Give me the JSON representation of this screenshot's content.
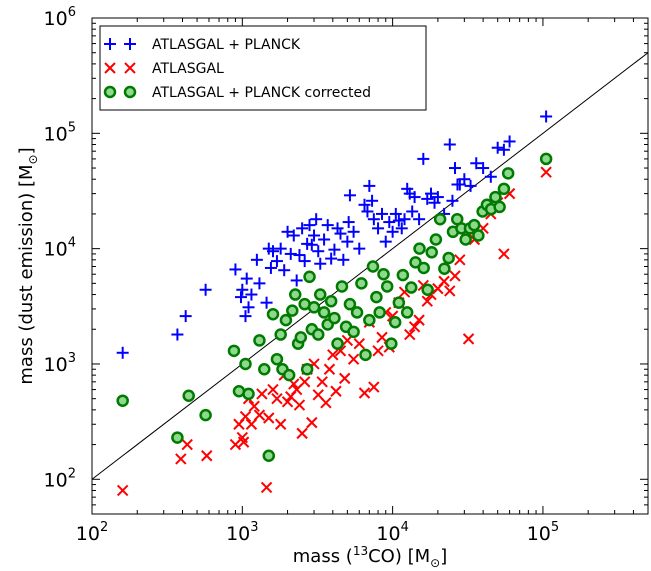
{
  "chart_data": {
    "type": "scatter",
    "title": "",
    "xlabel_parts": {
      "pre": "mass (",
      "sup": "13",
      "mid": "CO) [M",
      "sub": "⊙",
      "post": "]"
    },
    "ylabel_parts": {
      "pre": "mass (dust emission) [M",
      "sub": "⊙",
      "post": "]"
    },
    "x_scale": "log",
    "y_scale": "log",
    "xlim": [
      100,
      500000
    ],
    "ylim": [
      50,
      1000000
    ],
    "grid": false,
    "legend_position": "top-left",
    "x_ticks": [
      {
        "value": 100,
        "base": "10",
        "exp": "2"
      },
      {
        "value": 1000,
        "base": "10",
        "exp": "3"
      },
      {
        "value": 10000,
        "base": "10",
        "exp": "4"
      },
      {
        "value": 100000,
        "base": "10",
        "exp": "5"
      }
    ],
    "y_ticks": [
      {
        "value": 100,
        "base": "10",
        "exp": "2"
      },
      {
        "value": 1000,
        "base": "10",
        "exp": "3"
      },
      {
        "value": 10000,
        "base": "10",
        "exp": "4"
      },
      {
        "value": 100000,
        "base": "10",
        "exp": "5"
      },
      {
        "value": 1000000,
        "base": "10",
        "exp": "6"
      }
    ],
    "reference_line": {
      "x": [
        100,
        500000
      ],
      "y": [
        100,
        500000
      ],
      "color": "#000000"
    },
    "series": [
      {
        "name": "ATLASGAL + PLANCK",
        "marker": "plus",
        "color": "#0000ff",
        "x": [
          160,
          370,
          420,
          570,
          900,
          980,
          1000,
          1050,
          1070,
          1100,
          1150,
          1250,
          1300,
          1450,
          1500,
          1550,
          1600,
          1700,
          1800,
          1900,
          2000,
          2100,
          2200,
          2300,
          2400,
          2500,
          2600,
          2700,
          2800,
          2900,
          3000,
          3100,
          3200,
          3300,
          3500,
          3700,
          3900,
          4100,
          4300,
          4500,
          4700,
          5000,
          5200,
          5500,
          6000,
          6500,
          7000,
          7500,
          8000,
          8500,
          9000,
          9500,
          10000,
          10500,
          11000,
          11500,
          12000,
          12500,
          13000,
          13500,
          14000,
          15000,
          16000,
          17000,
          18000,
          19000,
          20000,
          22000,
          24000,
          26000,
          28000,
          30000,
          33000,
          36000,
          40000,
          45000,
          50000,
          55000,
          60000,
          105000,
          25000,
          27000,
          6800,
          7300,
          5100
        ],
        "y": [
          1250,
          1800,
          2600,
          4400,
          6600,
          3800,
          4400,
          2600,
          5500,
          3100,
          4000,
          8000,
          5000,
          3400,
          10000,
          6800,
          9500,
          7800,
          10000,
          6500,
          14000,
          9000,
          13000,
          5300,
          8800,
          15000,
          7800,
          11000,
          16000,
          10800,
          13000,
          18000,
          9500,
          7400,
          12000,
          16000,
          8200,
          9800,
          15000,
          13500,
          8000,
          11500,
          29000,
          14000,
          10000,
          24000,
          35000,
          18000,
          15000,
          20000,
          11500,
          17000,
          14000,
          20000,
          17500,
          15000,
          18000,
          33000,
          30000,
          21000,
          28000,
          18000,
          60000,
          27000,
          30000,
          25000,
          28000,
          20000,
          80000,
          50000,
          36000,
          40000,
          35000,
          55000,
          50000,
          42000,
          75000,
          72000,
          85000,
          140000,
          26000,
          36000,
          21000,
          26000,
          17000
        ]
      },
      {
        "name": "ATLASGAL",
        "marker": "x",
        "color": "#ff0000",
        "x": [
          160,
          390,
          430,
          580,
          900,
          950,
          1000,
          1020,
          1050,
          1100,
          1150,
          1200,
          1300,
          1350,
          1450,
          1500,
          1600,
          1700,
          1800,
          1900,
          2000,
          2100,
          2200,
          2300,
          2400,
          2500,
          2600,
          2700,
          2900,
          3000,
          3200,
          3400,
          3600,
          3800,
          4000,
          4200,
          4500,
          4800,
          5000,
          5500,
          6000,
          6500,
          7000,
          7500,
          8000,
          8500,
          9000,
          9500,
          10000,
          11000,
          12000,
          13000,
          14000,
          15000,
          16000,
          17000,
          18000,
          20000,
          22000,
          24000,
          26000,
          28000,
          32000,
          35000,
          40000,
          45000,
          50000,
          55000,
          60000,
          105000
        ],
        "y": [
          80,
          150,
          200,
          160,
          200,
          300,
          230,
          210,
          350,
          500,
          300,
          430,
          360,
          550,
          85,
          340,
          600,
          500,
          300,
          800,
          470,
          520,
          670,
          600,
          440,
          250,
          700,
          900,
          310,
          1000,
          540,
          700,
          460,
          900,
          1200,
          580,
          1300,
          750,
          1600,
          1100,
          1500,
          560,
          2300,
          630,
          1300,
          1700,
          2800,
          1400,
          2600,
          3400,
          4200,
          1800,
          2100,
          2400,
          4800,
          3500,
          4000,
          4500,
          5200,
          4300,
          5800,
          8000,
          1650,
          12000,
          15000,
          20000,
          25000,
          9000,
          30000,
          46000
        ]
      },
      {
        "name": "ATLASGAL + PLANCK corrected",
        "marker": "circle",
        "color": "#8ed98e",
        "edge": "#007a00",
        "x": [
          160,
          370,
          440,
          570,
          880,
          950,
          1050,
          1100,
          1300,
          1400,
          1500,
          1600,
          1700,
          1800,
          1850,
          1950,
          2050,
          2150,
          2250,
          2350,
          2450,
          2600,
          2700,
          2800,
          2900,
          3000,
          3200,
          3300,
          3500,
          3700,
          3900,
          4100,
          4300,
          4600,
          4900,
          5200,
          5500,
          5800,
          6200,
          6600,
          7000,
          7400,
          7800,
          8200,
          8700,
          9200,
          9800,
          10400,
          11000,
          11700,
          12500,
          13300,
          14200,
          15100,
          16100,
          17100,
          18200,
          19400,
          20700,
          22100,
          23600,
          25200,
          26900,
          28700,
          30600,
          32700,
          34900,
          37200,
          39700,
          42400,
          45200,
          48300,
          51500,
          55000,
          58700,
          105000
        ],
        "y": [
          480,
          230,
          530,
          360,
          1300,
          580,
          1000,
          550,
          1600,
          900,
          160,
          2700,
          1100,
          1800,
          900,
          2400,
          800,
          2900,
          4000,
          1500,
          1700,
          3300,
          900,
          5700,
          2000,
          3100,
          1800,
          4000,
          2800,
          2200,
          3500,
          2500,
          1500,
          4700,
          2100,
          3300,
          1900,
          2800,
          5000,
          1200,
          2400,
          7000,
          3800,
          2800,
          6000,
          4700,
          1500,
          2300,
          3400,
          5900,
          2800,
          4600,
          7600,
          10000,
          6800,
          4400,
          9300,
          12000,
          18000,
          6700,
          8300,
          14000,
          18000,
          15000,
          12000,
          15000,
          16000,
          13000,
          21000,
          24000,
          22000,
          28000,
          23000,
          33000,
          45000,
          60000
        ]
      }
    ]
  }
}
